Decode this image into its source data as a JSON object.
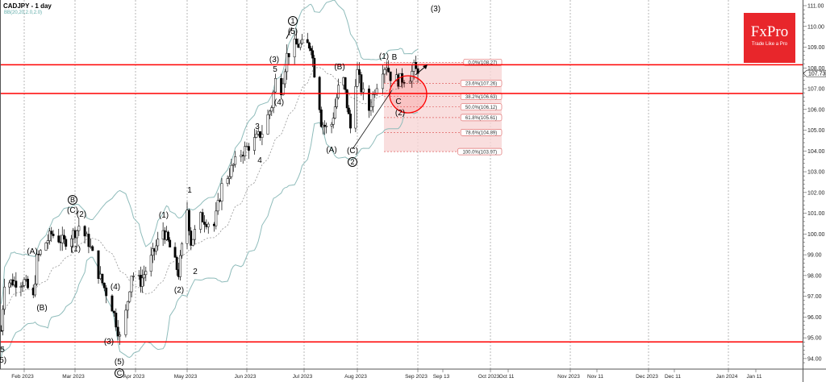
{
  "header": {
    "symbol_title": "CADJPY - 1 day",
    "indicator": "BB(20,20,2.0,2.0)"
  },
  "logo": {
    "brand": "FxPro",
    "tagline": "Trade Like a Pro"
  },
  "colors": {
    "level_lines": "#ff0000",
    "bollinger": "#8fbcbb",
    "fib_zone": "#f7d6d6",
    "logo_bg": "#e8262b"
  },
  "chart_data": {
    "type": "candlestick",
    "title": "CADJPY - 1 day",
    "indicator": "Bollinger Bands BB(20,20,2.0,2.0)",
    "ylim": [
      93.7,
      111.2
    ],
    "y_ticks": [
      "111.00",
      "110.00",
      "109.00",
      "108.00",
      "107.00",
      "106.00",
      "105.00",
      "104.00",
      "103.00",
      "102.00",
      "101.00",
      "100.00",
      "99.00",
      "98.00",
      "97.00",
      "96.00",
      "95.00",
      "94.00"
    ],
    "x_ticks": [
      "Feb 2023",
      "Mar 2023",
      "Apr 2023",
      "May 2023",
      "Jun 2023",
      "Jul 2023",
      "Aug 2023",
      "Sep 2023",
      "Sep 13",
      "Oct 2023",
      "Oct 11",
      "Nov 2023",
      "Nov 11",
      "Dec 2023",
      "Dec 11",
      "Jan 2024",
      "Jan 11"
    ],
    "current_price": "107.73",
    "approx_closes": [
      [
        "2023-01-18",
        95.35
      ],
      [
        "2023-01-20",
        97.7
      ],
      [
        "2023-02-01",
        97.7
      ],
      [
        "2023-02-06",
        96.9
      ],
      [
        "2023-02-08",
        98.8
      ],
      [
        "2023-02-13",
        99.6
      ],
      [
        "2023-02-16",
        100.0
      ],
      [
        "2023-02-23",
        99.6
      ],
      [
        "2023-03-02",
        100.2
      ],
      [
        "2023-03-03",
        100.4
      ],
      [
        "2023-03-08",
        99.6
      ],
      [
        "2023-03-13",
        98.1
      ],
      [
        "2023-03-20",
        96.5
      ],
      [
        "2023-03-24",
        95.0
      ],
      [
        "2023-03-27",
        96.2
      ],
      [
        "2023-03-30",
        98.1
      ],
      [
        "2023-04-04",
        97.7
      ],
      [
        "2023-04-10",
        98.8
      ],
      [
        "2023-04-17",
        100.2
      ],
      [
        "2023-04-20",
        99.6
      ],
      [
        "2023-04-26",
        98.1
      ],
      [
        "2023-05-01",
        101.2
      ],
      [
        "2023-05-03",
        99.6
      ],
      [
        "2023-05-08",
        100.8
      ],
      [
        "2023-05-15",
        100.4
      ],
      [
        "2023-05-19",
        102.3
      ],
      [
        "2023-05-25",
        103.3
      ],
      [
        "2023-05-29",
        103.9
      ],
      [
        "2023-06-05",
        104.5
      ],
      [
        "2023-06-09",
        104.9
      ],
      [
        "2023-06-14",
        106.2
      ],
      [
        "2023-06-16",
        107.4
      ],
      [
        "2023-06-19",
        107.0
      ],
      [
        "2023-06-22",
        108.6
      ],
      [
        "2023-06-26",
        109.1
      ],
      [
        "2023-06-30",
        109.1
      ],
      [
        "2023-07-05",
        109.1
      ],
      [
        "2023-07-07",
        107.8
      ],
      [
        "2023-07-10",
        106.2
      ],
      [
        "2023-07-11",
        105.4
      ],
      [
        "2023-07-14",
        105.1
      ],
      [
        "2023-07-17",
        105.3
      ],
      [
        "2023-07-21",
        107.0
      ],
      [
        "2023-07-24",
        107.4
      ],
      [
        "2023-07-26",
        106.2
      ],
      [
        "2023-07-28",
        105.1
      ],
      [
        "2023-07-31",
        107.4
      ],
      [
        "2023-08-01",
        107.8
      ],
      [
        "2023-08-03",
        107.0
      ],
      [
        "2023-08-07",
        106.0
      ],
      [
        "2023-08-10",
        107.0
      ],
      [
        "2023-08-14",
        108.0
      ],
      [
        "2023-08-16",
        108.15
      ],
      [
        "2023-08-18",
        107.6
      ],
      [
        "2023-08-22",
        107.4
      ],
      [
        "2023-08-28",
        107.6
      ],
      [
        "2023-08-30",
        108.0
      ],
      [
        "2023-09-01",
        107.73
      ]
    ],
    "horizontal_levels": [
      108.15,
      106.77,
      94.8
    ],
    "fibonacci": [
      {
        "label": "0.0%(108.27)",
        "price": 108.27
      },
      {
        "label": "23.6%(107.26)",
        "price": 107.26
      },
      {
        "label": "38.2%(106.63)",
        "price": 106.63
      },
      {
        "label": "50.0%(106.12)",
        "price": 106.12
      },
      {
        "label": "61.8%(105.61)",
        "price": 105.61
      },
      {
        "label": "78.6%(104.89)",
        "price": 104.89
      },
      {
        "label": "100.0%(103.97)",
        "price": 103.97
      }
    ],
    "wave_labels": [
      "5",
      "(5)",
      "(A)",
      "(B)",
      "B",
      "(C)",
      "(2)",
      "(1)",
      "(4)",
      "(3)",
      "(5)",
      "C",
      "(1)",
      "(2)",
      "1",
      "2",
      "3",
      "4",
      "5",
      "(3)",
      "(4)",
      "(5)",
      "1",
      "(B)",
      "(A)",
      "(C)",
      "2",
      "(1)",
      "B",
      "C",
      "(2)",
      "(3)"
    ]
  }
}
